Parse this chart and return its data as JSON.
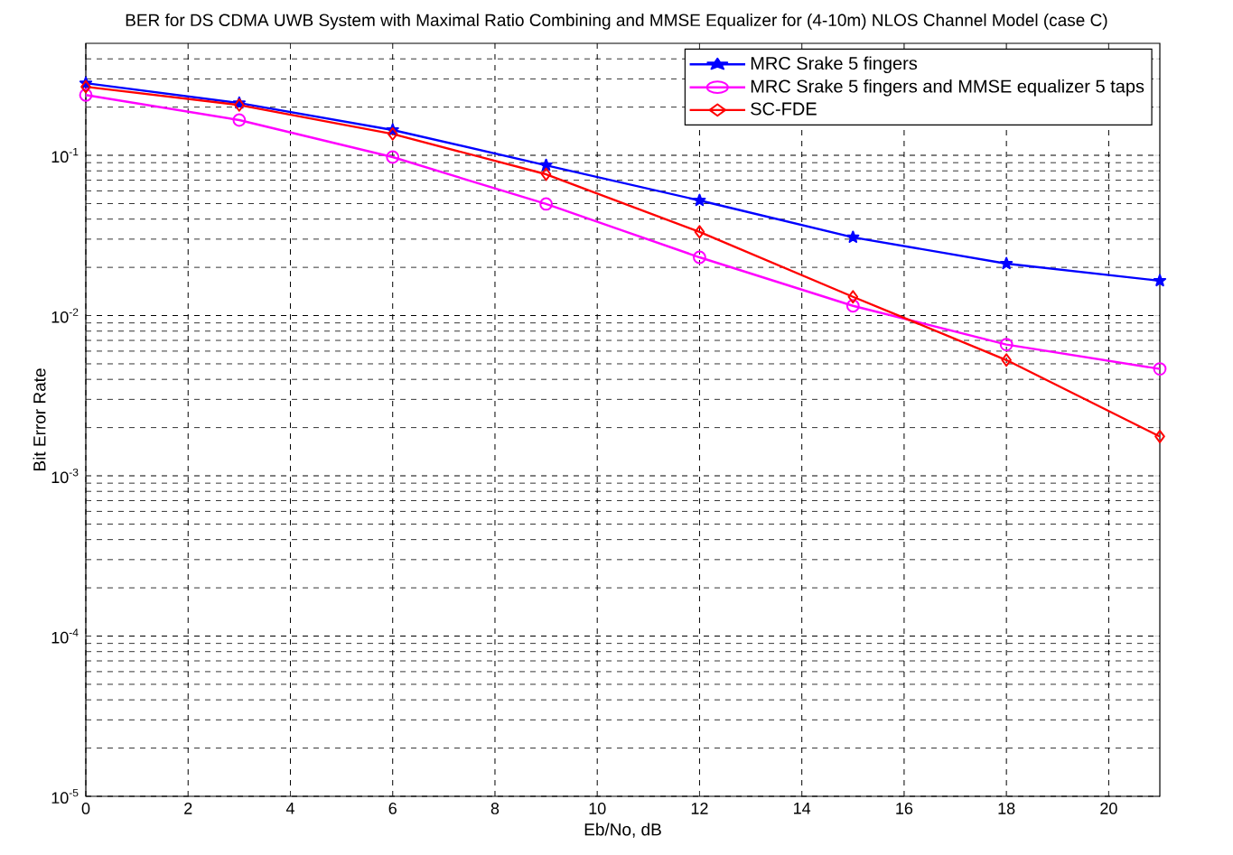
{
  "chart_data": {
    "type": "line",
    "title": "BER for DS CDMA UWB System with Maximal Ratio Combining and MMSE Equalizer for (4-10m) NLOS Channel Model (case C)",
    "xlabel": "Eb/No, dB",
    "ylabel": "Bit Error Rate",
    "x": [
      0,
      3,
      6,
      9,
      12,
      15,
      18,
      21
    ],
    "series": [
      {
        "name": "MRC Srake 5 fingers",
        "color": "#0000ff",
        "marker": "star",
        "values": [
          0.282,
          0.212,
          0.144,
          0.0867,
          0.0523,
          0.0308,
          0.0211,
          0.0165
        ]
      },
      {
        "name": "MRC Srake 5 fingers and MMSE equalizer 5 taps",
        "color": "#ff00ff",
        "marker": "circle",
        "values": [
          0.238,
          0.166,
          0.0975,
          0.0497,
          0.0231,
          0.0115,
          0.0066,
          0.00465
        ]
      },
      {
        "name": "SC-FDE",
        "color": "#ff0000",
        "marker": "diamond",
        "values": [
          0.268,
          0.206,
          0.136,
          0.0762,
          0.0333,
          0.0131,
          0.00528,
          0.00176
        ]
      }
    ],
    "xlim": [
      0,
      21
    ],
    "ylim": [
      1e-05,
      0.5
    ],
    "xticks": [
      0,
      2,
      4,
      6,
      8,
      10,
      12,
      14,
      16,
      18,
      20
    ],
    "yticks": [
      {
        "value": 1e-05,
        "label": "10$^{-5}$"
      },
      {
        "value": 0.0001,
        "label": "10$^{-4}$"
      },
      {
        "value": 0.001,
        "label": "10$^{-3}$"
      },
      {
        "value": 0.01,
        "label": "10$^{-2}$"
      },
      {
        "value": 0.1,
        "label": "10$^{-1}$"
      }
    ],
    "log": "y",
    "grid": true,
    "legend": "top right",
    "line_style": "solid"
  }
}
